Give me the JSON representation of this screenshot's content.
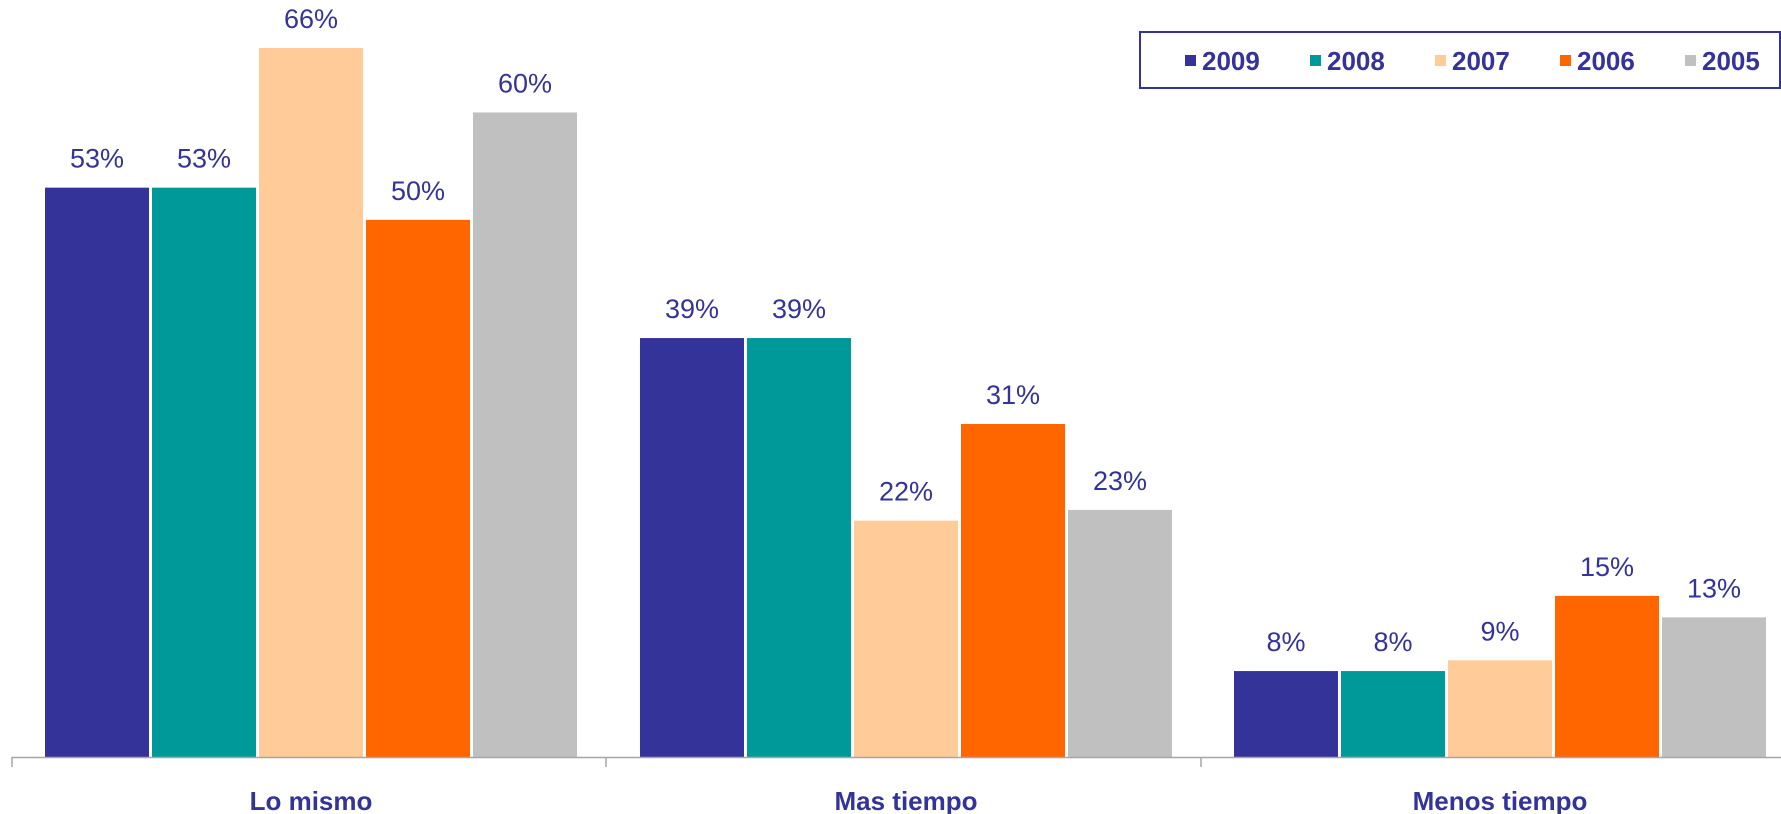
{
  "chart_data": {
    "type": "bar",
    "categories": [
      "Lo mismo",
      "Mas tiempo",
      "Menos tiempo"
    ],
    "series": [
      {
        "name": "2009",
        "color": "#333399",
        "values": [
          53,
          39,
          8
        ],
        "labels": [
          "53%",
          "39%",
          "8%"
        ]
      },
      {
        "name": "2008",
        "color": "#009999",
        "values": [
          53,
          39,
          8
        ],
        "labels": [
          "53%",
          "39%",
          "8%"
        ]
      },
      {
        "name": "2007",
        "color": "#FFCC99",
        "values": [
          66,
          22,
          9
        ],
        "labels": [
          "66%",
          "22%",
          "9%"
        ]
      },
      {
        "name": "2006",
        "color": "#FF6600",
        "values": [
          50,
          31,
          15
        ],
        "labels": [
          "50%",
          "31%",
          "15%"
        ]
      },
      {
        "name": "2005",
        "color": "#C0C0C0",
        "values": [
          60,
          23,
          13
        ],
        "labels": [
          "60%",
          "23%",
          "13%"
        ]
      }
    ],
    "ylim": [
      0,
      66
    ],
    "grid": false,
    "legend_position": "top-right",
    "text_color": "#333399",
    "label_color": "#333399"
  }
}
